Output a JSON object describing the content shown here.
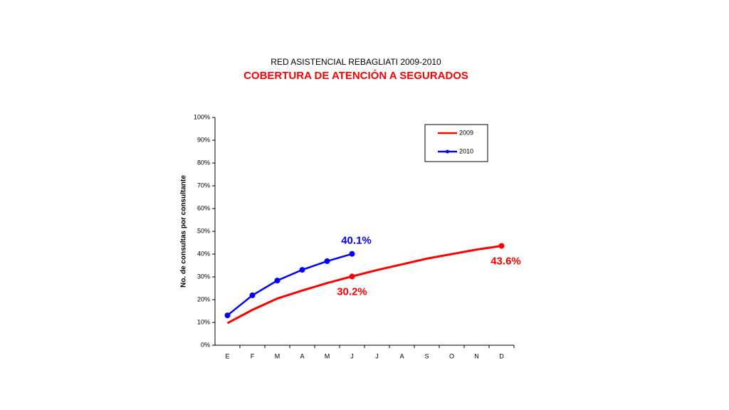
{
  "chart_data": {
    "type": "line",
    "title": "RED ASISTENCIAL REBAGLIATI 2009-2010",
    "subtitle": "COBERTURA DE ATENCIÓN A SEGURADOS",
    "y_label": "No. de consultas por consultante",
    "categories": [
      "E",
      "F",
      "M",
      "A",
      "M",
      "J",
      "J",
      "A",
      "S",
      "O",
      "N",
      "D"
    ],
    "series": [
      {
        "name": "2009",
        "color": "#ff0000",
        "values": [
          9.7,
          15.5,
          20.5,
          24,
          27.3,
          30.2,
          33,
          35.5,
          38,
          40,
          42,
          43.6
        ],
        "value_labels": [
          null,
          null,
          null,
          null,
          null,
          "30.2%",
          null,
          null,
          null,
          null,
          null,
          "43.6%"
        ]
      },
      {
        "name": "2010",
        "color": "#0000ff",
        "values": [
          13.1,
          21.9,
          28.4,
          33.1,
          36.9,
          40.1,
          null,
          null,
          null,
          null,
          null,
          null
        ],
        "value_labels": [
          null,
          null,
          null,
          null,
          null,
          "40.1%",
          null,
          null,
          null,
          null,
          null,
          null
        ]
      }
    ],
    "ylim": [
      0,
      100
    ],
    "yticks": [
      {
        "value": 0,
        "label": "0%"
      },
      {
        "value": 10,
        "label": "10%"
      },
      {
        "value": 20,
        "label": "20%"
      },
      {
        "value": 30,
        "label": "30%"
      },
      {
        "value": 40,
        "label": "40%"
      },
      {
        "value": 50,
        "label": "50%"
      },
      {
        "value": 60,
        "label": "60%"
      },
      {
        "value": 70,
        "label": "70%"
      },
      {
        "value": 80,
        "label": "80%"
      },
      {
        "value": 90,
        "label": "90%"
      },
      {
        "value": 100,
        "label": "100%"
      }
    ],
    "grid": false,
    "legend": "upper right"
  }
}
